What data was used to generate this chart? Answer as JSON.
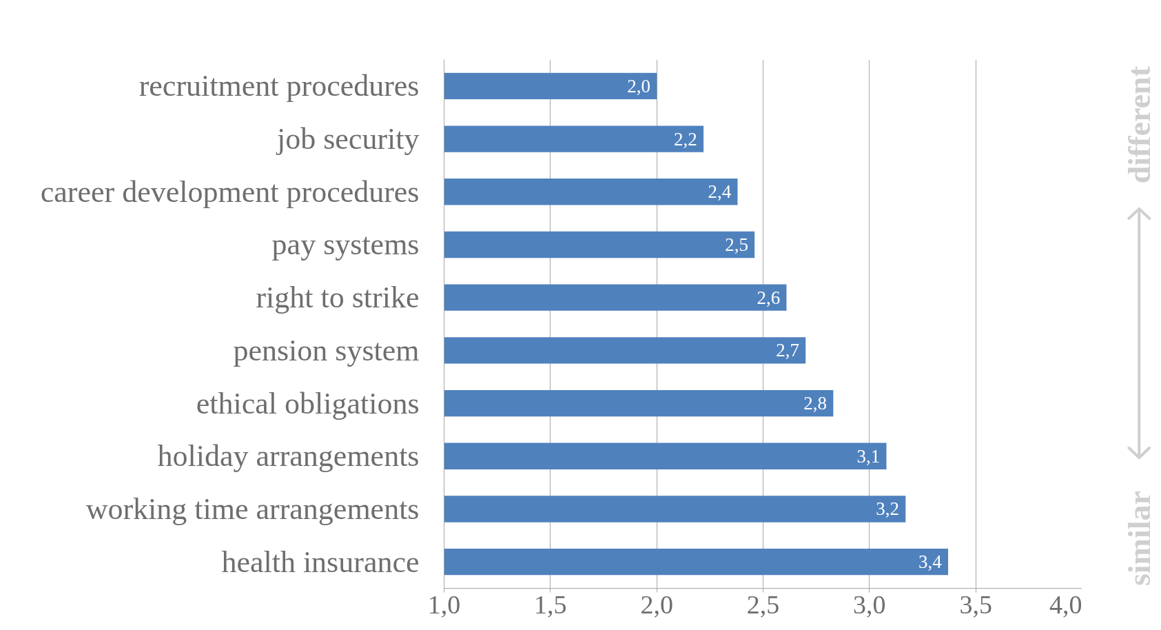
{
  "chart_data": {
    "type": "bar",
    "orientation": "horizontal",
    "categories": [
      "recruitment procedures",
      "job security",
      "career development procedures",
      "pay systems",
      "right to strike",
      "pension system",
      "ethical obligations",
      "holiday arrangements",
      "working time arrangements",
      "health insurance"
    ],
    "values": [
      2.0,
      2.22,
      2.38,
      2.46,
      2.61,
      2.7,
      2.83,
      3.08,
      3.17,
      3.37
    ],
    "value_labels": [
      "2,0",
      "2,2",
      "2,4",
      "2,5",
      "2,6",
      "2,7",
      "2,8",
      "3,1",
      "3,2",
      "3,4"
    ],
    "color": "#4f81bd",
    "xlim": [
      1.0,
      4.0
    ],
    "xticks": [
      {
        "value": 1.0,
        "label": "1,0"
      },
      {
        "value": 1.5,
        "label": "1,5"
      },
      {
        "value": 2.0,
        "label": "2,0"
      },
      {
        "value": 2.5,
        "label": "2,5"
      },
      {
        "value": 3.0,
        "label": "3,0"
      },
      {
        "value": 3.5,
        "label": "3,5"
      },
      {
        "value": 4.0,
        "label": "4,0"
      }
    ],
    "grid": "x",
    "annotations": [
      "different",
      "similar"
    ]
  }
}
